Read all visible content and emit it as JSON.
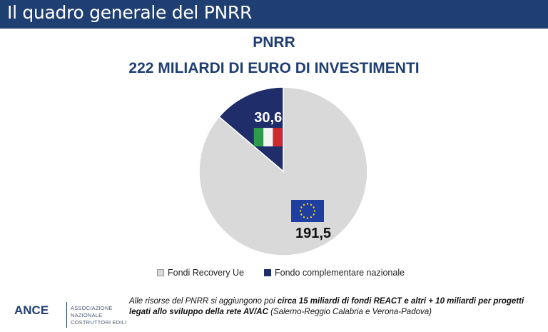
{
  "header": {
    "title": "Il quadro generale del PNRR"
  },
  "chart_data": {
    "type": "pie",
    "title": "PNRR",
    "subtitle": "222 MILIARDI DI EURO DI INVESTIMENTI",
    "slices": [
      {
        "name": "Fondi Recovery Ue",
        "value": 191.5,
        "label": "191,5",
        "color": "#d9d9d9",
        "flag": "eu-flag"
      },
      {
        "name": "Fondo complementare nazionale",
        "value": 30.6,
        "label": "30,6",
        "color": "#1f2d6b",
        "flag": "italy-flag"
      }
    ],
    "legend_position": "bottom"
  },
  "legend": {
    "items": [
      {
        "label": "Fondi Recovery Ue",
        "color": "#d9d9d9"
      },
      {
        "label": "Fondo complementare nazionale",
        "color": "#1f2d6b"
      }
    ]
  },
  "footer": {
    "logo_text": "ANCE",
    "logo_sub_1": "ASSOCIAZIONE NAZIONALE",
    "logo_sub_2": "COSTRUTTORI EDILI",
    "note_part1": "Alle risorse del PNRR si aggiungono poi ",
    "note_bold": "circa 15 miliardi di fondi REACT e altri + 10 miliardi per progetti legati allo sviluppo della rete AV/AC",
    "note_part2": " (Salerno-Reggio Calabria e Verona-Padova)"
  }
}
